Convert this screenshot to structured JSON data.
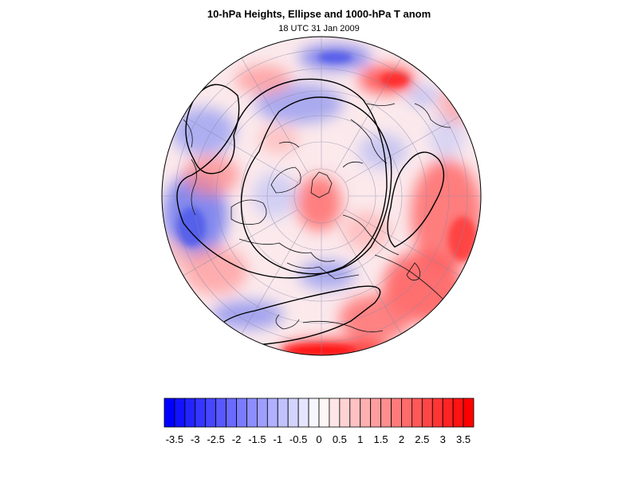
{
  "title": "10-hPa Heights, Ellipse and 1000-hPa T anom",
  "subtitle": "18 UTC 31 Jan 2009",
  "map": {
    "projection": "orthographic (north polar)",
    "field": "1000-hPa temperature anomaly",
    "contours": "10-hPa heights with fitted vortex ellipse"
  },
  "colorbar": {
    "labels": [
      "-3.5",
      "-3",
      "-2.5",
      "-2",
      "-1.5",
      "-1",
      "-0.5",
      "0",
      "0.5",
      "1",
      "1.5",
      "2",
      "2.5",
      "3",
      "3.5"
    ],
    "min": -3.75,
    "max": 3.75,
    "step": 0.25,
    "negative_color": "#0000ff",
    "positive_color": "#ff0000",
    "mid_color": "#ffffff"
  }
}
